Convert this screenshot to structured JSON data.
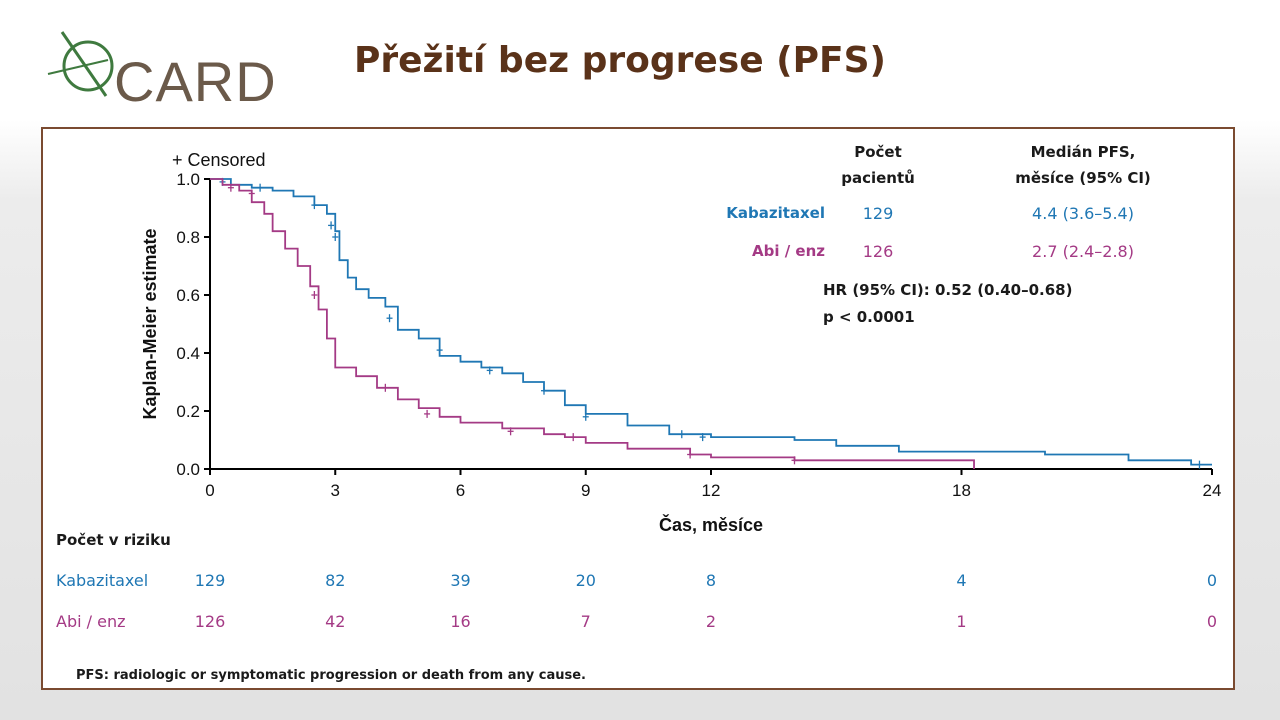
{
  "logo": {
    "text": "CARD"
  },
  "title": "Přežití bez progrese (PFS)",
  "table_header": {
    "count": [
      "Počet",
      "pacientů"
    ],
    "median": [
      "Medián PFS,",
      "měsíce (95% CI)"
    ]
  },
  "arms": [
    {
      "name": "Kabazitaxel",
      "count": "129",
      "median": "4.4 (3.6–5.4)",
      "color": "#1f77b4"
    },
    {
      "name": "Abi / enz",
      "count": "126",
      "median": "2.7 (2.4–2.8)",
      "color": "#a43a85"
    }
  ],
  "hr_text": "HR (95% CI): 0.52 (0.40–0.68)",
  "p_text": "p < 0.0001",
  "risk": {
    "title": "Počet v riziku",
    "rows": [
      {
        "name": "Kabazitaxel",
        "values": [
          "129",
          "82",
          "39",
          "20",
          "8",
          "4",
          "0"
        ]
      },
      {
        "name": "Abi / enz",
        "values": [
          "126",
          "42",
          "16",
          "7",
          "2",
          "1",
          "0"
        ]
      }
    ]
  },
  "footnote": "PFS: radiologic or symptomatic progression or death from any cause.",
  "chart_data": {
    "type": "line",
    "legend_note": "+ Censored",
    "xlabel": "Čas, měsíce",
    "ylabel": "Kaplan-Meier estimate",
    "xlim": [
      0,
      24
    ],
    "ylim": [
      0,
      1.0
    ],
    "xticks": [
      0,
      3,
      6,
      9,
      12,
      18,
      24
    ],
    "yticks": [
      0.0,
      0.2,
      0.4,
      0.6,
      0.8,
      1.0
    ],
    "ytick_labels": [
      "0.0",
      "0.2",
      "0.4",
      "0.6",
      "0.8",
      "1.0"
    ],
    "series": [
      {
        "name": "Kabazitaxel",
        "color": "#1f77b4",
        "x": [
          0,
          0.5,
          1.0,
          1.5,
          2.0,
          2.5,
          2.8,
          3.0,
          3.1,
          3.3,
          3.5,
          3.8,
          4.2,
          4.5,
          5.0,
          5.5,
          6.0,
          6.5,
          7.0,
          7.5,
          8.0,
          8.5,
          9.0,
          10.0,
          11.0,
          12.0,
          14.0,
          15.0,
          16.5,
          18.0,
          20.0,
          22.0,
          23.5,
          24.0
        ],
        "y": [
          1.0,
          0.98,
          0.97,
          0.96,
          0.94,
          0.91,
          0.88,
          0.82,
          0.72,
          0.66,
          0.62,
          0.59,
          0.56,
          0.48,
          0.45,
          0.39,
          0.37,
          0.35,
          0.33,
          0.3,
          0.27,
          0.22,
          0.19,
          0.15,
          0.12,
          0.11,
          0.1,
          0.08,
          0.06,
          0.06,
          0.05,
          0.03,
          0.015,
          0.015
        ],
        "censored": [
          [
            0.3,
            0.99
          ],
          [
            1.2,
            0.97
          ],
          [
            2.5,
            0.91
          ],
          [
            2.9,
            0.84
          ],
          [
            3.0,
            0.8
          ],
          [
            4.3,
            0.52
          ],
          [
            5.5,
            0.41
          ],
          [
            6.7,
            0.34
          ],
          [
            8.0,
            0.27
          ],
          [
            9.0,
            0.18
          ],
          [
            11.3,
            0.12
          ],
          [
            11.8,
            0.11
          ],
          [
            23.7,
            0.015
          ]
        ]
      },
      {
        "name": "Abi / enz",
        "color": "#a43a85",
        "x": [
          0,
          0.3,
          0.7,
          1.0,
          1.3,
          1.5,
          1.8,
          2.1,
          2.4,
          2.6,
          2.8,
          3.0,
          3.5,
          4.0,
          4.5,
          5.0,
          5.5,
          6.0,
          7.0,
          8.0,
          8.5,
          9.0,
          10.0,
          11.5,
          12.0,
          14.0,
          16.0,
          18.0,
          18.3
        ],
        "y": [
          1.0,
          0.98,
          0.96,
          0.92,
          0.88,
          0.82,
          0.76,
          0.7,
          0.63,
          0.55,
          0.45,
          0.35,
          0.32,
          0.28,
          0.24,
          0.21,
          0.18,
          0.16,
          0.14,
          0.12,
          0.11,
          0.09,
          0.07,
          0.05,
          0.04,
          0.03,
          0.03,
          0.03,
          0.0
        ],
        "censored": [
          [
            0.5,
            0.97
          ],
          [
            1.0,
            0.95
          ],
          [
            2.5,
            0.6
          ],
          [
            4.2,
            0.28
          ],
          [
            5.2,
            0.19
          ],
          [
            7.2,
            0.13
          ],
          [
            8.7,
            0.11
          ],
          [
            11.5,
            0.05
          ],
          [
            14.0,
            0.03
          ]
        ]
      }
    ]
  }
}
